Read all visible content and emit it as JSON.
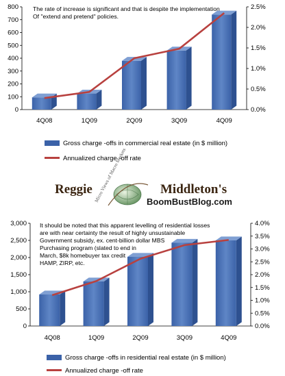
{
  "chart_data": [
    {
      "type": "bar",
      "categories": [
        "4Q08",
        "1Q09",
        "2Q09",
        "3Q09",
        "4Q09"
      ],
      "series": [
        {
          "name": "Gross charge -offs in commercial real estate (in $ million)",
          "values": [
            95,
            125,
            380,
            460,
            740
          ],
          "axis": "left",
          "kind": "bar"
        },
        {
          "name": "Annualized charge -off rate",
          "values": [
            0.28,
            0.43,
            1.25,
            1.48,
            2.35
          ],
          "axis": "right",
          "kind": "line"
        }
      ],
      "yticks_left": [
        "0",
        "100",
        "200",
        "300",
        "400",
        "500",
        "600",
        "700",
        "800"
      ],
      "yticks_right": [
        "0.0%",
        "0.5%",
        "1.0%",
        "1.5%",
        "2.0%",
        "2.5%"
      ],
      "ylim_left": [
        0,
        800
      ],
      "ylim_right": [
        0,
        2.5
      ],
      "annotation": [
        "The rate of increase is significant  and that is despite the implementation",
        "Of \"extend and pretend\" policies."
      ],
      "grid": false,
      "legend_position": "bottom"
    },
    {
      "type": "bar",
      "categories": [
        "4Q08",
        "1Q09",
        "2Q09",
        "3Q09",
        "4Q09"
      ],
      "series": [
        {
          "name": "Gross charge -offs in residential real estate  (in $ million)",
          "values": [
            920,
            1300,
            2020,
            2430,
            2500
          ],
          "axis": "left",
          "kind": "bar"
        },
        {
          "name": "Annualized charge -off rate",
          "values": [
            1.2,
            1.75,
            2.62,
            3.15,
            3.35
          ],
          "axis": "right",
          "kind": "line"
        }
      ],
      "yticks_left": [
        "0",
        "500",
        "1,000",
        "1,500",
        "2,000",
        "2,500",
        "3,000"
      ],
      "yticks_right": [
        "0.0%",
        "0.5%",
        "1.0%",
        "1.5%",
        "2.0%",
        "2.5%",
        "3.0%",
        "3.5%",
        "4.0%"
      ],
      "ylim_left": [
        0,
        3000
      ],
      "ylim_right": [
        0,
        4.0
      ],
      "annotation": [
        "It should be noted that this apparent levelling of residential losses",
        "are with near certainty the result of highly unsustainable",
        "Government subsidy, ex. cent-billion  dollar MBS",
        "Purchasing program (slated to end in",
        "March, $8k homebuyer tax credit",
        "HAMP, ZIRP, etc."
      ],
      "grid": false,
      "legend_position": "bottom"
    }
  ],
  "logo": {
    "name_left": "Reggie",
    "name_right": "Middleton's",
    "blog": "BoomBustBlog.com",
    "arc_text": "Micro Views of Macro Markets"
  },
  "colors": {
    "bar_front": "#4a72b4",
    "bar_side": "#2e5190",
    "bar_top": "#7f9fd3",
    "line": "#b8413f"
  }
}
